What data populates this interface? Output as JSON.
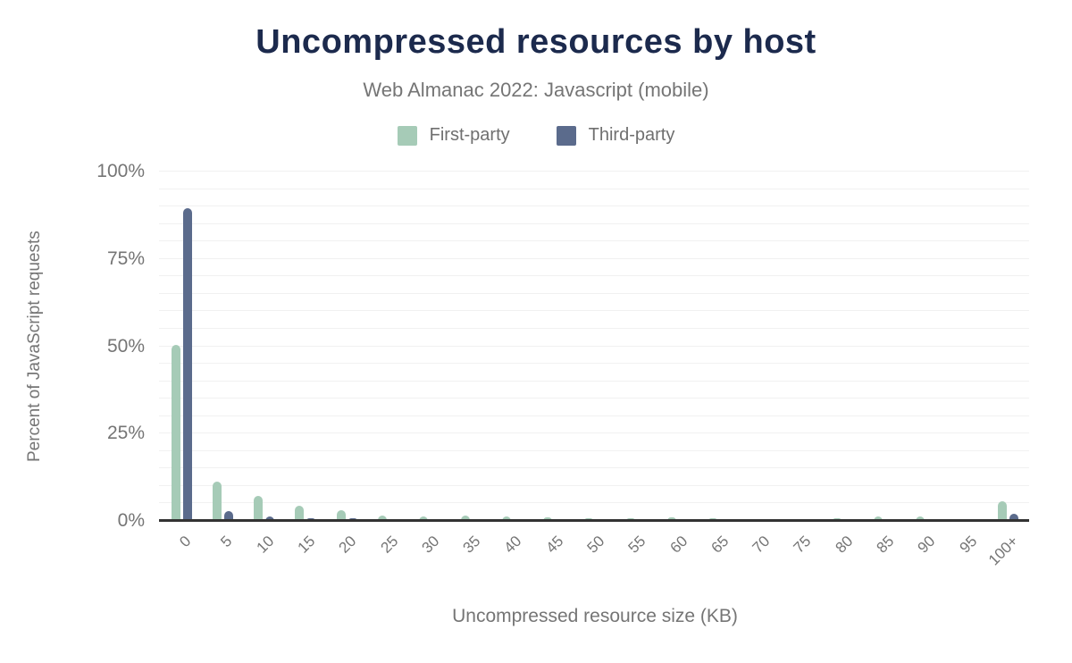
{
  "header": {
    "title": "Uncompressed resources by host",
    "subtitle": "Web Almanac 2022: Javascript (mobile)"
  },
  "colors": {
    "title_navy": "#1c2a4d",
    "text_gray": "#757575",
    "gridline": "#f1f1f1",
    "axis_line": "#333333",
    "first_party_green": "#a6cbb7",
    "third_party_blue": "#5b6b8c",
    "background": "#ffffff"
  },
  "chart_data": {
    "type": "bar",
    "title": "Uncompressed resources by host",
    "subtitle": "Web Almanac 2022: Javascript (mobile)",
    "xlabel": "Uncompressed resource size (KB)",
    "ylabel": "Percent of JavaScript requests",
    "ylim": [
      0,
      100
    ],
    "yticks": [
      0,
      25,
      50,
      75,
      100
    ],
    "ytick_suffix": "%",
    "grid": "horizontal minor gridlines every 5%, light gray, dark baseline at 0%",
    "legend_position": "top-center",
    "xtick_rotation_deg": -45,
    "categories": [
      "0",
      "5",
      "10",
      "15",
      "20",
      "25",
      "30",
      "35",
      "40",
      "45",
      "50",
      "55",
      "60",
      "65",
      "70",
      "75",
      "80",
      "85",
      "90",
      "95",
      "100+"
    ],
    "series": [
      {
        "name": "First-party",
        "color": "#a6cbb7",
        "values": [
          50.4,
          11.3,
          7.2,
          4.4,
          3.2,
          1.6,
          1.3,
          1.5,
          1.2,
          0.9,
          0.8,
          0.8,
          0.9,
          0.8,
          0.5,
          0.5,
          0.7,
          1.2,
          1.4,
          0.4,
          5.6
        ]
      },
      {
        "name": "Third-party",
        "color": "#5b6b8c",
        "values": [
          89.5,
          2.8,
          1.3,
          0.7,
          0.8,
          0.3,
          0.3,
          0.3,
          0.3,
          0.2,
          0.2,
          0.3,
          0.3,
          0.2,
          0.2,
          0.2,
          0.3,
          0.3,
          0.3,
          0.3,
          2.1
        ]
      }
    ]
  }
}
